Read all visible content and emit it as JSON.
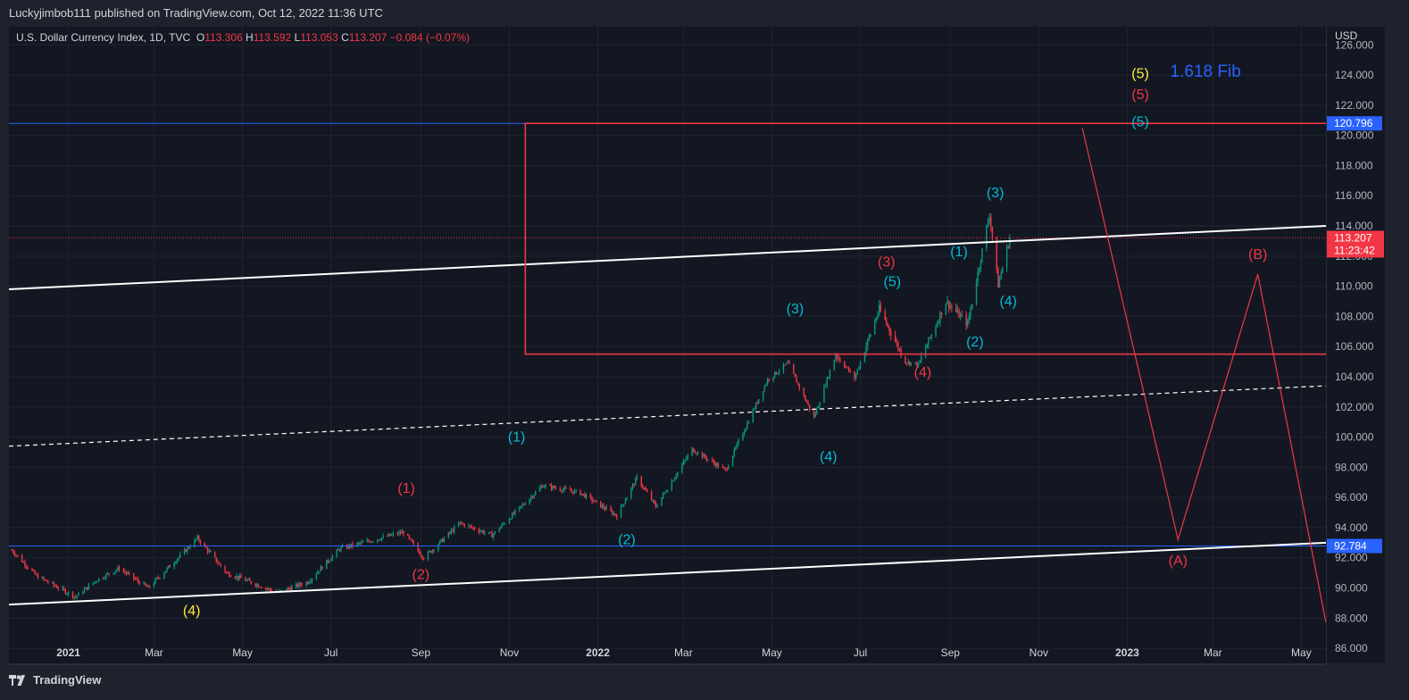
{
  "header": {
    "published": "Luckyjimbob111 published on TradingView.com, Oct 12, 2022 11:36 UTC"
  },
  "legend": {
    "symbol": "U.S. Dollar Currency Index, 1D, TVC",
    "o_label": "O",
    "o_value": "113.306",
    "h_label": "H",
    "h_value": "113.592",
    "l_label": "L",
    "l_value": "113.053",
    "c_label": "C",
    "c_value": "113.207",
    "change": "−0.084 (−0.07%)"
  },
  "footer": {
    "brand": "TradingView"
  },
  "chart_data": {
    "type": "candlestick",
    "currency_label": "USD",
    "y_ticks": [
      "126.000",
      "124.000",
      "122.000",
      "120.000",
      "118.000",
      "116.000",
      "114.000",
      "112.000",
      "110.000",
      "108.000",
      "106.000",
      "104.000",
      "102.000",
      "100.000",
      "98.000",
      "96.000",
      "94.000",
      "92.000",
      "90.000",
      "88.000",
      "86.000"
    ],
    "x_ticks": [
      {
        "label": "2021",
        "bold": true
      },
      {
        "label": "Mar",
        "bold": false
      },
      {
        "label": "May",
        "bold": false
      },
      {
        "label": "Jul",
        "bold": false
      },
      {
        "label": "Sep",
        "bold": false
      },
      {
        "label": "Nov",
        "bold": false
      },
      {
        "label": "2022",
        "bold": true
      },
      {
        "label": "Mar",
        "bold": false
      },
      {
        "label": "May",
        "bold": false
      },
      {
        "label": "Jul",
        "bold": false
      },
      {
        "label": "Sep",
        "bold": false
      },
      {
        "label": "Nov",
        "bold": false
      },
      {
        "label": "2023",
        "bold": true
      },
      {
        "label": "Mar",
        "bold": false
      },
      {
        "label": "May",
        "bold": false
      }
    ],
    "x_ticks_dates": [
      "2021-01-01",
      "2021-03-01",
      "2021-05-01",
      "2021-07-01",
      "2021-09-01",
      "2021-11-01",
      "2022-01-01",
      "2022-03-01",
      "2022-05-01",
      "2022-07-01",
      "2022-09-01",
      "2022-11-01",
      "2023-01-01",
      "2023-03-01",
      "2023-05-01"
    ],
    "x_range": [
      "2020-11-21",
      "2023-05-18"
    ],
    "y_range": [
      85.0,
      127.2
    ],
    "price_path": [
      [
        "2020-11-23",
        92.5
      ],
      [
        "2020-12-10",
        90.8
      ],
      [
        "2021-01-06",
        89.4
      ],
      [
        "2021-01-20",
        90.5
      ],
      [
        "2021-02-05",
        91.3
      ],
      [
        "2021-02-25",
        90.0
      ],
      [
        "2021-03-31",
        93.3
      ],
      [
        "2021-04-20",
        91.0
      ],
      [
        "2021-05-25",
        89.7
      ],
      [
        "2021-06-15",
        90.4
      ],
      [
        "2021-07-07",
        92.6
      ],
      [
        "2021-08-20",
        93.7
      ],
      [
        "2021-09-03",
        92.0
      ],
      [
        "2021-09-28",
        94.3
      ],
      [
        "2021-10-20",
        93.5
      ],
      [
        "2021-11-24",
        96.8
      ],
      [
        "2021-12-20",
        96.3
      ],
      [
        "2022-01-14",
        94.8
      ],
      [
        "2022-01-28",
        97.3
      ],
      [
        "2022-02-10",
        95.4
      ],
      [
        "2022-03-07",
        99.2
      ],
      [
        "2022-03-30",
        97.8
      ],
      [
        "2022-04-28",
        103.8
      ],
      [
        "2022-05-12",
        104.9
      ],
      [
        "2022-05-30",
        101.3
      ],
      [
        "2022-06-14",
        105.5
      ],
      [
        "2022-06-27",
        103.9
      ],
      [
        "2022-07-14",
        108.5
      ],
      [
        "2022-08-01",
        105.0
      ],
      [
        "2022-08-10",
        104.8
      ],
      [
        "2022-08-29",
        109.0
      ],
      [
        "2022-09-13",
        107.5
      ],
      [
        "2022-09-28",
        114.8
      ],
      [
        "2022-10-04",
        110.1
      ],
      [
        "2022-10-12",
        113.2
      ]
    ],
    "last_price": {
      "value": "113.207",
      "countdown": "11:23:42",
      "color": "#f23645"
    },
    "horizontal_lines": [
      {
        "value": 120.796,
        "label": "120.796",
        "color": "#2962ff"
      },
      {
        "value": 92.784,
        "label": "92.784",
        "color": "#2962ff"
      }
    ],
    "channel_lines": [
      {
        "from": [
          "2020-11-21",
          109.8
        ],
        "to": [
          "2023-05-18",
          114.0
        ],
        "style": "solid",
        "color": "#ffffff"
      },
      {
        "from": [
          "2020-11-21",
          99.4
        ],
        "to": [
          "2023-05-18",
          103.4
        ],
        "style": "dashed",
        "color": "#ffffff"
      },
      {
        "from": [
          "2020-11-21",
          88.9
        ],
        "to": [
          "2023-05-18",
          93.0
        ],
        "style": "solid",
        "color": "#ffffff"
      }
    ],
    "target_box": {
      "from": [
        "2021-11-12",
        120.796
      ],
      "to": [
        "2023-05-18",
        105.5
      ],
      "color": "#f23645"
    },
    "projection_path": {
      "points": [
        [
          "2022-12-01",
          120.5
        ],
        [
          "2023-02-05",
          93.2
        ],
        [
          "2023-04-01",
          110.8
        ],
        [
          "2023-05-18",
          87.7
        ]
      ],
      "color": "#f23645"
    },
    "wave_labels": [
      {
        "text": "(4)",
        "date": "2021-03-27",
        "price": 88.2,
        "color": "#ffeb3b"
      },
      {
        "text": "(1)",
        "date": "2021-08-22",
        "price": 96.3,
        "color": "#f23645"
      },
      {
        "text": "(2)",
        "date": "2021-09-01",
        "price": 90.6,
        "color": "#f23645"
      },
      {
        "text": "(1)",
        "date": "2021-11-06",
        "price": 99.7,
        "color": "#00bcd4"
      },
      {
        "text": "(2)",
        "date": "2022-01-21",
        "price": 92.9,
        "color": "#00bcd4"
      },
      {
        "text": "(3)",
        "date": "2022-05-17",
        "price": 108.2,
        "color": "#00bcd4"
      },
      {
        "text": "(4)",
        "date": "2022-06-09",
        "price": 98.4,
        "color": "#00bcd4"
      },
      {
        "text": "(3)",
        "date": "2022-07-19",
        "price": 111.3,
        "color": "#f23645"
      },
      {
        "text": "(5)",
        "date": "2022-07-23",
        "price": 110.0,
        "color": "#00bcd4"
      },
      {
        "text": "(4)",
        "date": "2022-08-13",
        "price": 104.0,
        "color": "#f23645"
      },
      {
        "text": "(1)",
        "date": "2022-09-07",
        "price": 112.0,
        "color": "#00bcd4"
      },
      {
        "text": "(2)",
        "date": "2022-09-18",
        "price": 106.0,
        "color": "#00bcd4"
      },
      {
        "text": "(3)",
        "date": "2022-10-02",
        "price": 115.9,
        "color": "#00bcd4"
      },
      {
        "text": "(4)",
        "date": "2022-10-11",
        "price": 108.7,
        "color": "#00bcd4"
      },
      {
        "text": "(5)",
        "date": "2023-01-10",
        "price": 123.8,
        "color": "#ffeb3b"
      },
      {
        "text": "(5)",
        "date": "2023-01-10",
        "price": 122.4,
        "color": "#f23645"
      },
      {
        "text": "(5)",
        "date": "2023-01-10",
        "price": 120.6,
        "color": "#00bcd4"
      },
      {
        "text": "(A)",
        "date": "2023-02-05",
        "price": 91.5,
        "color": "#f23645"
      },
      {
        "text": "(B)",
        "date": "2023-04-01",
        "price": 111.8,
        "color": "#f23645"
      },
      {
        "text": "1.618 Fib",
        "date": "2023-02-24",
        "price": 123.9,
        "color": "#2962ff",
        "size": 19
      }
    ]
  }
}
